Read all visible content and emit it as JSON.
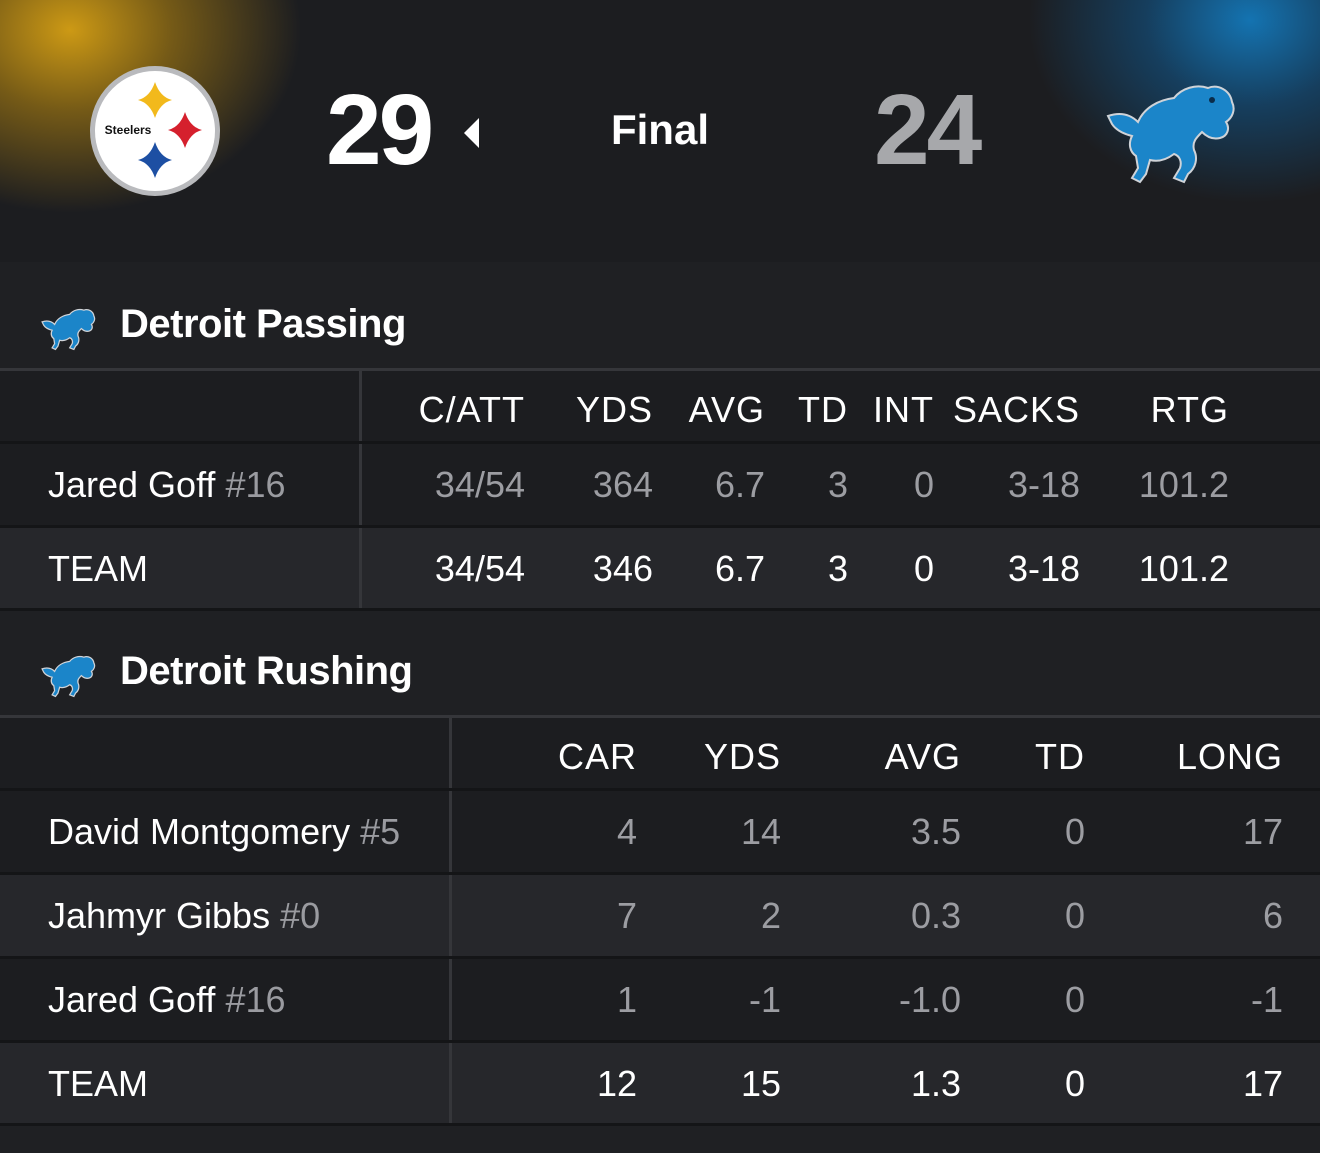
{
  "game": {
    "status": "Final",
    "home": {
      "name": "Steelers",
      "logo_text": "Steelers",
      "score": "29",
      "is_winner": true,
      "color": "#d6a014"
    },
    "away": {
      "name": "Lions",
      "score": "24",
      "color": "#1478b9"
    }
  },
  "passing": {
    "title": "Detroit Passing",
    "columns": [
      "C/ATT",
      "YDS",
      "AVG",
      "TD",
      "INT",
      "SACKS",
      "RTG"
    ],
    "rows": [
      {
        "name": "Jared Goff",
        "number": "#16",
        "values": [
          "34/54",
          "364",
          "6.7",
          "3",
          "0",
          "3-18",
          "101.2"
        ]
      }
    ],
    "team": {
      "name": "TEAM",
      "values": [
        "34/54",
        "346",
        "6.7",
        "3",
        "0",
        "3-18",
        "101.2"
      ]
    }
  },
  "rushing": {
    "title": "Detroit Rushing",
    "columns": [
      "CAR",
      "YDS",
      "AVG",
      "TD",
      "LONG"
    ],
    "rows": [
      {
        "name": "David Montgomery",
        "number": "#5",
        "values": [
          "4",
          "14",
          "3.5",
          "0",
          "17"
        ]
      },
      {
        "name": "Jahmyr Gibbs",
        "number": "#0",
        "values": [
          "7",
          "2",
          "0.3",
          "0",
          "6"
        ]
      },
      {
        "name": "Jared Goff",
        "number": "#16",
        "values": [
          "1",
          "-1",
          "-1.0",
          "0",
          "-1"
        ]
      }
    ],
    "team": {
      "name": "TEAM",
      "values": [
        "12",
        "15",
        "1.3",
        "0",
        "17"
      ]
    }
  },
  "icons": {
    "home_logo": "steelers-logo-icon",
    "away_logo": "lions-logo-icon",
    "winner_indicator": "caret-left-icon"
  }
}
